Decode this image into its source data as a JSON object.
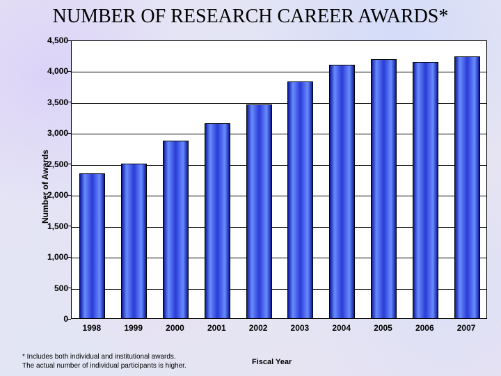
{
  "title": "NUMBER OF RESEARCH CAREER AWARDS*",
  "ylabel": "Number of Awards",
  "xlabel": "Fiscal Year",
  "footnote_line1": "* Includes both individual and institutional awards.",
  "footnote_line2": "The actual number of individual participants is higher.",
  "chart": {
    "type": "bar",
    "categories": [
      "1998",
      "1999",
      "2000",
      "2001",
      "2002",
      "2003",
      "2004",
      "2005",
      "2006",
      "2007"
    ],
    "values": [
      2340,
      2500,
      2870,
      3150,
      3450,
      3820,
      4100,
      4180,
      4140,
      4230
    ],
    "ylim": [
      0,
      4500
    ],
    "ytick_step": 500,
    "bar_width": 0.62,
    "plot_bg": "#ffffff",
    "axis_color": "#000000",
    "grid_color": "#000000",
    "bar_fill_top": "#2a3bd6",
    "bar_fill_mid": "#6a8cff",
    "bar_fill_bottom": "#0a1a9a",
    "bar_border": "#000000",
    "title_fontsize": 28,
    "title_fontfamily": "Garamond, Georgia, serif",
    "label_fontsize": 12,
    "tick_fontsize": 12,
    "footnote_fontsize": 10,
    "background_texture": "mottled lavender-blue-pink"
  }
}
